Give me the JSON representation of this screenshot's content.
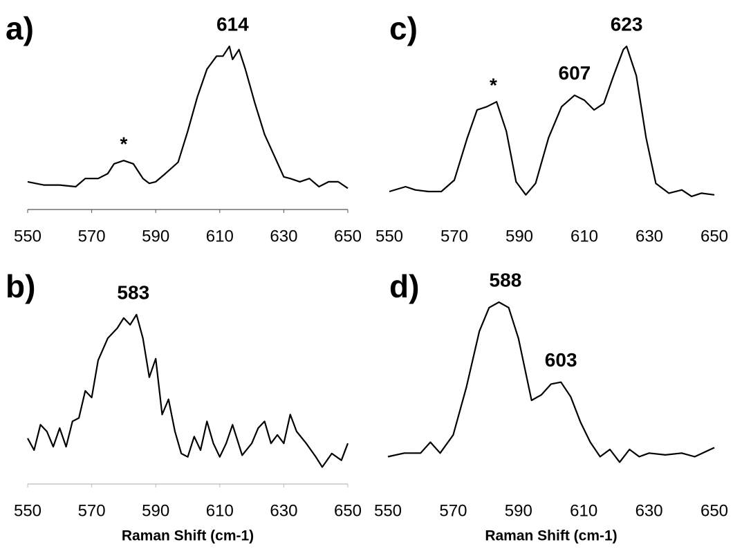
{
  "chart_data": [
    {
      "type": "line",
      "panel_label": "a)",
      "xlim": [
        550,
        650
      ],
      "xticks": [
        550,
        570,
        590,
        610,
        630,
        650
      ],
      "ylim": [
        0,
        100
      ],
      "axis_line": true,
      "color": "#000000",
      "x": [
        550,
        555,
        560,
        565,
        568,
        572,
        575,
        577,
        580,
        583,
        586,
        588,
        590,
        593,
        597,
        600,
        603,
        606,
        609,
        611,
        613,
        614,
        616,
        618,
        621,
        624,
        627,
        630,
        632,
        635,
        638,
        641,
        644,
        647,
        650
      ],
      "values": [
        17,
        15,
        15,
        14,
        19,
        19,
        22,
        28,
        30,
        28,
        19,
        16,
        17,
        22,
        29,
        48,
        69,
        86,
        94,
        94,
        100,
        92,
        98,
        86,
        65,
        46,
        33,
        20,
        19,
        17,
        19,
        14,
        17,
        17,
        13
      ],
      "annotations": [
        {
          "x": 580,
          "text": "*"
        },
        {
          "x": 614,
          "text": "614"
        }
      ]
    },
    {
      "type": "line",
      "panel_label": "b)",
      "x_label": "Raman Shift (cm-1)",
      "xlim": [
        550,
        650
      ],
      "xticks": [
        550,
        570,
        590,
        610,
        630,
        650
      ],
      "ylim": [
        0,
        100
      ],
      "axis_line": true,
      "color": "#000000",
      "x": [
        550,
        552,
        554,
        556,
        558,
        560,
        562,
        564,
        566,
        568,
        570,
        572,
        575,
        578,
        580,
        582,
        584,
        586,
        588,
        590,
        592,
        594,
        596,
        598,
        600,
        602,
        604,
        606,
        608,
        610,
        612,
        614,
        617,
        620,
        622,
        624,
        626,
        628,
        630,
        632,
        634,
        637,
        640,
        642,
        645,
        648,
        650
      ],
      "values": [
        27,
        20,
        35,
        31,
        22,
        33,
        22,
        37,
        39,
        55,
        51,
        73,
        86,
        92,
        98,
        94,
        100,
        86,
        63,
        74,
        41,
        50,
        31,
        18,
        16,
        28,
        20,
        37,
        24,
        16,
        24,
        35,
        17,
        24,
        33,
        37,
        24,
        29,
        24,
        41,
        31,
        24,
        16,
        10,
        18,
        14,
        24
      ],
      "annotations": [
        {
          "x": 583,
          "text": "583"
        }
      ]
    },
    {
      "type": "line",
      "panel_label": "c)",
      "xlim": [
        550,
        650
      ],
      "xticks": [
        550,
        570,
        590,
        610,
        630,
        650
      ],
      "ylim": [
        0,
        100
      ],
      "axis_line": false,
      "color": "#000000",
      "x": [
        550,
        555,
        558,
        562,
        566,
        570,
        574,
        577,
        580,
        583,
        586,
        589,
        592,
        595,
        599,
        603,
        607,
        610,
        613,
        616,
        619,
        622,
        623,
        626,
        629,
        632,
        636,
        640,
        643,
        646,
        650
      ],
      "values": [
        11,
        14,
        12,
        11,
        11,
        18,
        44,
        61,
        63,
        66,
        48,
        17,
        9,
        16,
        44,
        63,
        70,
        67,
        61,
        65,
        82,
        98,
        100,
        82,
        44,
        16,
        10,
        12,
        8,
        10,
        9
      ],
      "annotations": [
        {
          "x": 582,
          "text": "*"
        },
        {
          "x": 607,
          "text": "607"
        },
        {
          "x": 623,
          "text": "623"
        }
      ]
    },
    {
      "type": "line",
      "panel_label": "d)",
      "x_label": "Raman Shift (cm-1)",
      "xlim": [
        550,
        650
      ],
      "xticks": [
        550,
        570,
        590,
        610,
        630,
        650
      ],
      "ylim": [
        0,
        100
      ],
      "axis_line": false,
      "color": "#000000",
      "x": [
        550,
        555,
        560,
        563,
        566,
        570,
        574,
        578,
        581,
        584,
        587,
        590,
        594,
        597,
        600,
        603,
        606,
        609,
        612,
        615,
        618,
        621,
        624,
        627,
        630,
        635,
        640,
        644,
        650
      ],
      "values": [
        15,
        17,
        17,
        23,
        17,
        27,
        53,
        84,
        97,
        100,
        97,
        80,
        46,
        49,
        55,
        56,
        48,
        34,
        23,
        15,
        19,
        12,
        19,
        15,
        17,
        16,
        17,
        15,
        20
      ],
      "annotations": [
        {
          "x": 586,
          "text": "588"
        },
        {
          "x": 603,
          "text": "603"
        }
      ]
    }
  ]
}
